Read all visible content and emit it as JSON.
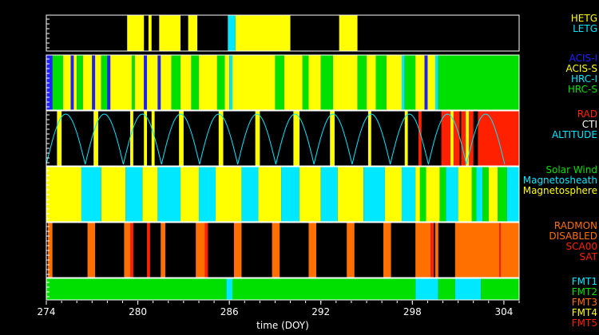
{
  "colors": {
    "yellow": "#ffff00",
    "blue": "#2020ff",
    "green": "#00e000",
    "cyan": "#00e8ff",
    "red": "#ff2000",
    "orange": "#ff7000",
    "black": "#000000",
    "white": "#ffffff"
  },
  "chart_data": {
    "type": "timeline",
    "xlabel": "time (DOY)",
    "xlim": [
      274,
      305
    ],
    "xticks": [
      274,
      280,
      286,
      292,
      298,
      304
    ],
    "panels": [
      {
        "id": "grating",
        "legend": [
          {
            "text": "HETG",
            "color": "#ffff00"
          },
          {
            "text": "LETG",
            "color": "#00e8ff"
          }
        ],
        "segments": [
          {
            "start": 279.3,
            "end": 280.4,
            "color": "#ffff00"
          },
          {
            "start": 280.7,
            "end": 280.9,
            "color": "#ffff00"
          },
          {
            "start": 281.4,
            "end": 282.8,
            "color": "#ffff00"
          },
          {
            "start": 283.3,
            "end": 283.9,
            "color": "#ffff00"
          },
          {
            "start": 285.9,
            "end": 286.4,
            "color": "#00e8ff"
          },
          {
            "start": 286.4,
            "end": 290.0,
            "color": "#ffff00"
          },
          {
            "start": 293.2,
            "end": 294.4,
            "color": "#ffff00"
          }
        ]
      },
      {
        "id": "instrument",
        "legend": [
          {
            "text": "ACIS-I",
            "color": "#2020ff"
          },
          {
            "text": "ACIS-S",
            "color": "#ffff00"
          },
          {
            "text": "HRC-I",
            "color": "#00e8ff"
          },
          {
            "text": "HRC-S",
            "color": "#00e000"
          }
        ],
        "segments": [
          {
            "start": 274.0,
            "end": 274.4,
            "color": "#2020ff"
          },
          {
            "start": 274.4,
            "end": 275.1,
            "color": "#00e000"
          },
          {
            "start": 275.1,
            "end": 275.6,
            "color": "#ffff00"
          },
          {
            "start": 275.6,
            "end": 275.8,
            "color": "#2020ff"
          },
          {
            "start": 275.8,
            "end": 276.0,
            "color": "#ffff00"
          },
          {
            "start": 276.0,
            "end": 276.4,
            "color": "#00e000"
          },
          {
            "start": 276.4,
            "end": 277.0,
            "color": "#ffff00"
          },
          {
            "start": 277.0,
            "end": 277.2,
            "color": "#2020ff"
          },
          {
            "start": 277.2,
            "end": 277.6,
            "color": "#ffff00"
          },
          {
            "start": 277.6,
            "end": 278.0,
            "color": "#00e000"
          },
          {
            "start": 278.0,
            "end": 278.2,
            "color": "#2020ff"
          },
          {
            "start": 278.2,
            "end": 279.6,
            "color": "#ffff00"
          },
          {
            "start": 279.6,
            "end": 279.8,
            "color": "#00e000"
          },
          {
            "start": 279.8,
            "end": 280.4,
            "color": "#ffff00"
          },
          {
            "start": 280.4,
            "end": 280.6,
            "color": "#2020ff"
          },
          {
            "start": 280.6,
            "end": 281.3,
            "color": "#ffff00"
          },
          {
            "start": 281.3,
            "end": 281.5,
            "color": "#2020ff"
          },
          {
            "start": 281.5,
            "end": 282.2,
            "color": "#ffff00"
          },
          {
            "start": 282.2,
            "end": 282.8,
            "color": "#00e000"
          },
          {
            "start": 282.8,
            "end": 283.5,
            "color": "#ffff00"
          },
          {
            "start": 283.5,
            "end": 284.0,
            "color": "#00e000"
          },
          {
            "start": 284.0,
            "end": 285.2,
            "color": "#ffff00"
          },
          {
            "start": 285.2,
            "end": 285.7,
            "color": "#00e000"
          },
          {
            "start": 285.7,
            "end": 286.0,
            "color": "#ffff00"
          },
          {
            "start": 286.0,
            "end": 286.2,
            "color": "#00e8ff"
          },
          {
            "start": 286.2,
            "end": 289.0,
            "color": "#ffff00"
          },
          {
            "start": 289.0,
            "end": 289.6,
            "color": "#00e000"
          },
          {
            "start": 289.6,
            "end": 290.8,
            "color": "#ffff00"
          },
          {
            "start": 290.8,
            "end": 291.2,
            "color": "#00e000"
          },
          {
            "start": 291.2,
            "end": 292.0,
            "color": "#ffff00"
          },
          {
            "start": 292.0,
            "end": 292.8,
            "color": "#00e000"
          },
          {
            "start": 292.8,
            "end": 294.4,
            "color": "#ffff00"
          },
          {
            "start": 294.4,
            "end": 295.0,
            "color": "#00e000"
          },
          {
            "start": 295.0,
            "end": 295.6,
            "color": "#ffff00"
          },
          {
            "start": 295.6,
            "end": 296.3,
            "color": "#00e000"
          },
          {
            "start": 296.3,
            "end": 297.3,
            "color": "#ffff00"
          },
          {
            "start": 297.3,
            "end": 297.5,
            "color": "#00e8ff"
          },
          {
            "start": 297.5,
            "end": 298.2,
            "color": "#00e000"
          },
          {
            "start": 298.2,
            "end": 298.8,
            "color": "#ffff00"
          },
          {
            "start": 298.8,
            "end": 299.0,
            "color": "#2020ff"
          },
          {
            "start": 299.0,
            "end": 299.5,
            "color": "#ffff00"
          },
          {
            "start": 299.5,
            "end": 299.7,
            "color": "#00e8ff"
          },
          {
            "start": 299.7,
            "end": 305.0,
            "color": "#00e000"
          }
        ]
      },
      {
        "id": "radiation",
        "legend": [
          {
            "text": "RAD",
            "color": "#ff2000"
          },
          {
            "text": "CTI",
            "color": "#ffffff"
          },
          {
            "text": "ALTITUDE",
            "color": "#00e8ff"
          }
        ],
        "segments": [
          {
            "start": 274.7,
            "end": 275.0,
            "color": "#ffff00"
          },
          {
            "start": 277.1,
            "end": 277.4,
            "color": "#ffff00"
          },
          {
            "start": 279.5,
            "end": 279.7,
            "color": "#ffff00"
          },
          {
            "start": 280.4,
            "end": 280.6,
            "color": "#ffff00"
          },
          {
            "start": 280.9,
            "end": 281.1,
            "color": "#ffff00"
          },
          {
            "start": 282.7,
            "end": 283.0,
            "color": "#ffff00"
          },
          {
            "start": 285.3,
            "end": 285.6,
            "color": "#ffff00"
          },
          {
            "start": 287.7,
            "end": 288.0,
            "color": "#ffff00"
          },
          {
            "start": 290.2,
            "end": 290.6,
            "color": "#ffff00"
          },
          {
            "start": 292.6,
            "end": 292.9,
            "color": "#ffff00"
          },
          {
            "start": 295.1,
            "end": 295.3,
            "color": "#ffff00"
          },
          {
            "start": 297.5,
            "end": 297.7,
            "color": "#ffff00"
          },
          {
            "start": 298.4,
            "end": 298.6,
            "color": "#ff2000"
          },
          {
            "start": 299.9,
            "end": 300.5,
            "color": "#ff2000"
          },
          {
            "start": 300.5,
            "end": 300.7,
            "color": "#ffff00"
          },
          {
            "start": 300.7,
            "end": 301.1,
            "color": "#ff2000"
          },
          {
            "start": 301.2,
            "end": 301.5,
            "color": "#ff2000"
          },
          {
            "start": 301.5,
            "end": 301.7,
            "color": "#ffff00"
          },
          {
            "start": 301.7,
            "end": 302.0,
            "color": "#ff2000"
          },
          {
            "start": 302.3,
            "end": 305.0,
            "color": "#ff2000"
          }
        ],
        "altitude_minima": [
          274.0,
          276.55,
          279.05,
          281.55,
          284.05,
          286.55,
          289.05,
          291.55,
          294.05,
          296.55,
          299.05,
          301.55,
          304.05
        ]
      },
      {
        "id": "environment",
        "legend": [
          {
            "text": "Solar Wind",
            "color": "#00e000"
          },
          {
            "text": "Magnetosheath",
            "color": "#00e8ff"
          },
          {
            "text": "Magnetosphere",
            "color": "#ffff00"
          }
        ],
        "segments": [
          {
            "start": 274.0,
            "end": 276.3,
            "color": "#ffff00"
          },
          {
            "start": 276.3,
            "end": 277.6,
            "color": "#00e8ff"
          },
          {
            "start": 277.6,
            "end": 279.2,
            "color": "#ffff00"
          },
          {
            "start": 279.2,
            "end": 280.3,
            "color": "#00e8ff"
          },
          {
            "start": 280.3,
            "end": 281.3,
            "color": "#ffff00"
          },
          {
            "start": 281.3,
            "end": 282.8,
            "color": "#00e8ff"
          },
          {
            "start": 282.8,
            "end": 284.0,
            "color": "#ffff00"
          },
          {
            "start": 284.0,
            "end": 285.1,
            "color": "#00e8ff"
          },
          {
            "start": 285.1,
            "end": 286.8,
            "color": "#ffff00"
          },
          {
            "start": 286.8,
            "end": 287.9,
            "color": "#00e8ff"
          },
          {
            "start": 287.9,
            "end": 289.4,
            "color": "#ffff00"
          },
          {
            "start": 289.4,
            "end": 290.6,
            "color": "#00e8ff"
          },
          {
            "start": 290.6,
            "end": 292.0,
            "color": "#ffff00"
          },
          {
            "start": 292.0,
            "end": 293.1,
            "color": "#00e8ff"
          },
          {
            "start": 293.1,
            "end": 294.8,
            "color": "#ffff00"
          },
          {
            "start": 294.8,
            "end": 296.2,
            "color": "#00e8ff"
          },
          {
            "start": 296.2,
            "end": 297.3,
            "color": "#ffff00"
          },
          {
            "start": 297.3,
            "end": 298.2,
            "color": "#00e8ff"
          },
          {
            "start": 298.2,
            "end": 298.5,
            "color": "#ffff00"
          },
          {
            "start": 298.5,
            "end": 298.9,
            "color": "#00e000"
          },
          {
            "start": 298.9,
            "end": 299.8,
            "color": "#ffff00"
          },
          {
            "start": 299.8,
            "end": 300.2,
            "color": "#00e000"
          },
          {
            "start": 300.2,
            "end": 301.0,
            "color": "#00e8ff"
          },
          {
            "start": 301.0,
            "end": 301.9,
            "color": "#ffff00"
          },
          {
            "start": 301.9,
            "end": 302.2,
            "color": "#00e000"
          },
          {
            "start": 302.2,
            "end": 302.6,
            "color": "#00e8ff"
          },
          {
            "start": 302.6,
            "end": 303.0,
            "color": "#00e000"
          },
          {
            "start": 303.0,
            "end": 303.6,
            "color": "#ffff00"
          },
          {
            "start": 303.6,
            "end": 304.2,
            "color": "#00e000"
          },
          {
            "start": 304.2,
            "end": 305.0,
            "color": "#00e8ff"
          }
        ]
      },
      {
        "id": "radmon",
        "legend": [
          {
            "text": "RADMON",
            "color": "#ff7000"
          },
          {
            "text": "DISABLED",
            "color": "#ff7000"
          },
          {
            "text": "SCA00",
            "color": "#ff2000"
          },
          {
            "text": "SAT",
            "color": "#ff2000"
          }
        ],
        "segments": [
          {
            "start": 274.1,
            "end": 274.4,
            "color": "#ff7000"
          },
          {
            "start": 276.7,
            "end": 277.2,
            "color": "#ff7000"
          },
          {
            "start": 279.1,
            "end": 279.5,
            "color": "#ff7000"
          },
          {
            "start": 279.5,
            "end": 279.7,
            "color": "#ff2000"
          },
          {
            "start": 280.6,
            "end": 280.8,
            "color": "#ff2000"
          },
          {
            "start": 281.5,
            "end": 281.8,
            "color": "#ff7000"
          },
          {
            "start": 283.8,
            "end": 284.4,
            "color": "#ff7000"
          },
          {
            "start": 284.4,
            "end": 284.6,
            "color": "#ff2000"
          },
          {
            "start": 286.3,
            "end": 286.8,
            "color": "#ff7000"
          },
          {
            "start": 288.8,
            "end": 289.3,
            "color": "#ff7000"
          },
          {
            "start": 291.2,
            "end": 291.7,
            "color": "#ff7000"
          },
          {
            "start": 293.7,
            "end": 294.2,
            "color": "#ff7000"
          },
          {
            "start": 296.1,
            "end": 296.6,
            "color": "#ff7000"
          },
          {
            "start": 298.2,
            "end": 299.2,
            "color": "#ff7000"
          },
          {
            "start": 299.2,
            "end": 299.4,
            "color": "#ff2000"
          },
          {
            "start": 299.5,
            "end": 299.7,
            "color": "#ff7000"
          },
          {
            "start": 300.8,
            "end": 303.7,
            "color": "#ff7000"
          },
          {
            "start": 303.7,
            "end": 303.8,
            "color": "#ff2000"
          },
          {
            "start": 303.8,
            "end": 305.0,
            "color": "#ff7000"
          }
        ]
      },
      {
        "id": "format",
        "legend": [
          {
            "text": "FMT1",
            "color": "#00e8ff"
          },
          {
            "text": "FMT2",
            "color": "#00e000"
          },
          {
            "text": "FMT3",
            "color": "#ff7000"
          },
          {
            "text": "FMT4",
            "color": "#ffff00"
          },
          {
            "text": "FMT5",
            "color": "#ff2000"
          }
        ],
        "segments": [
          {
            "start": 274.0,
            "end": 285.8,
            "color": "#00e000"
          },
          {
            "start": 285.8,
            "end": 286.2,
            "color": "#00e8ff"
          },
          {
            "start": 286.2,
            "end": 298.2,
            "color": "#00e000"
          },
          {
            "start": 298.2,
            "end": 299.7,
            "color": "#00e8ff"
          },
          {
            "start": 299.7,
            "end": 300.8,
            "color": "#00e000"
          },
          {
            "start": 300.8,
            "end": 302.5,
            "color": "#00e8ff"
          },
          {
            "start": 302.5,
            "end": 305.0,
            "color": "#00e000"
          }
        ]
      }
    ]
  }
}
